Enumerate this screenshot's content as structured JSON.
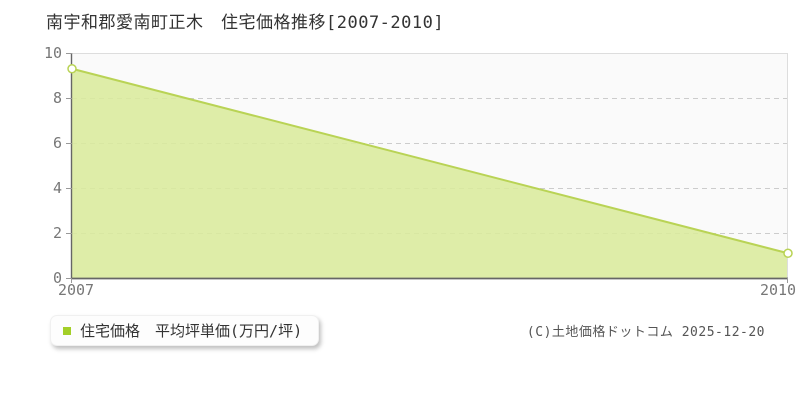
{
  "chart_data": {
    "type": "area",
    "title": "南宇和郡愛南町正木　住宅価格推移[2007-2010]",
    "x": [
      2007,
      2010
    ],
    "x_labels": [
      "2007",
      "2010"
    ],
    "series": [
      {
        "name": "住宅価格 平均坪単価(万円/坪)",
        "values": [
          9.3,
          1.1
        ]
      }
    ],
    "xlim": [
      2007,
      2010
    ],
    "ylim": [
      0,
      10
    ],
    "yticks": [
      0,
      2,
      4,
      6,
      8,
      10
    ],
    "grid_yticks": [
      2,
      4,
      6,
      8
    ],
    "grid_style": "dashed-horizontal",
    "legend_position": "bottom-left",
    "marker": "open-circle",
    "colors": {
      "plot_bg": "#fafafa",
      "area_fill": "#d9eb9c",
      "line": "#b9d355",
      "marker_fill": "#ffffff",
      "grid": "#cccccc",
      "plot_border": "#dddddd",
      "axis": "#666666",
      "tick": "#999999",
      "legend_marker": "#a3cf28",
      "title_text": "#333333",
      "axis_text": "#777777",
      "copyright_text": "#555555"
    }
  },
  "legend": {
    "label": "住宅価格　平均坪単価(万円/坪)"
  },
  "footer": {
    "copyright": "(C)土地価格ドットコム 2025-12-20"
  }
}
